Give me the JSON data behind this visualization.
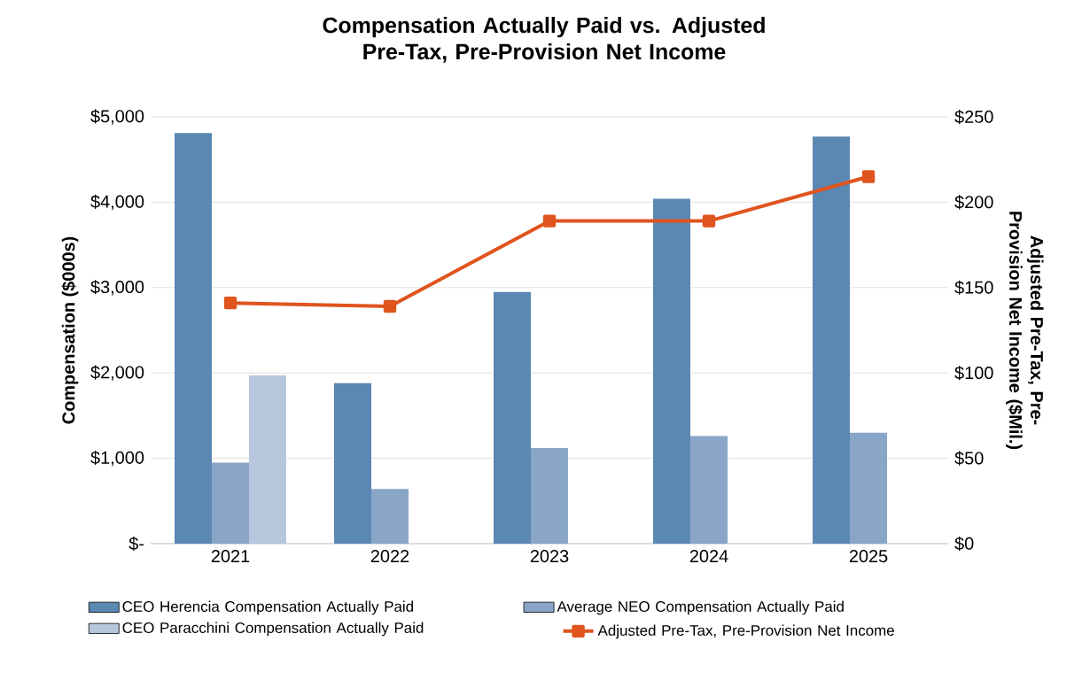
{
  "chart_data": {
    "type": "bar",
    "title": "Compensation Actually Paid vs. Adjusted Pre-Tax, Pre-Provision Net Income",
    "ylabel": "Compensation ($000s)",
    "y2label": "Adjusted Pre-Tax, Pre-Provision Net Income ($Mil.)",
    "categories": [
      "2021",
      "2022",
      "2023",
      "2024",
      "2025"
    ],
    "series": [
      {
        "name": "CEO Herencia Compensation Actually Paid",
        "color": "#5b87b3",
        "values": [
          4810,
          1880,
          2950,
          4040,
          4770
        ]
      },
      {
        "name": "Average NEO Compensation Actually Paid",
        "color": "#89a5c8",
        "values": [
          950,
          640,
          1120,
          1260,
          1300
        ]
      },
      {
        "name": "CEO Paracchini Compensation Actually Paid",
        "color": "#b5c6dd",
        "values": [
          1970,
          null,
          null,
          null,
          null
        ]
      },
      {
        "name": "Adjusted Pre-Tax, Pre-Provision Net Income",
        "type": "line",
        "axis": "y2",
        "color": "#e0541e",
        "marker": "square",
        "line_style": "solid",
        "values": [
          141,
          139,
          189,
          189,
          215
        ]
      }
    ],
    "ylim": [
      0,
      5000
    ],
    "yticks": [
      {
        "value": 0,
        "label": "$-"
      },
      {
        "value": 1000,
        "label": "$1,000"
      },
      {
        "value": 2000,
        "label": "$2,000"
      },
      {
        "value": 3000,
        "label": "$3,000"
      },
      {
        "value": 4000,
        "label": "$4,000"
      },
      {
        "value": 5000,
        "label": "$5,000"
      }
    ],
    "y2lim": [
      0,
      250
    ],
    "y2ticks": [
      {
        "value": 0,
        "label": "$0"
      },
      {
        "value": 50,
        "label": "$50"
      },
      {
        "value": 100,
        "label": "$100"
      },
      {
        "value": 150,
        "label": "$150"
      },
      {
        "value": 200,
        "label": "$200"
      },
      {
        "value": 250,
        "label": "$250"
      }
    ],
    "grid": "y",
    "legend": "bottom"
  }
}
